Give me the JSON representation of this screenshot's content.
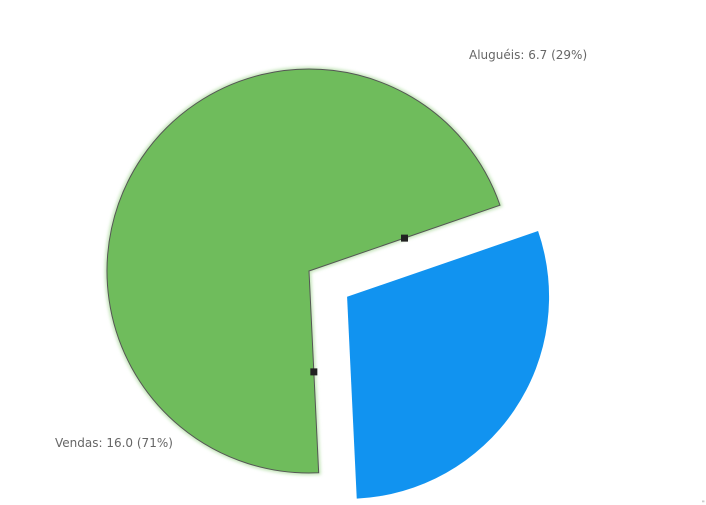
{
  "chart_data": {
    "type": "pie",
    "slices": [
      {
        "label": "Aluguéis",
        "value": 6.7,
        "percent": 29,
        "color": "#1193f0",
        "exploded": true,
        "selected": false
      },
      {
        "label": "Vendas",
        "value": 16.0,
        "percent": 71,
        "color": "#6fbc5c",
        "exploded": false,
        "selected": true
      }
    ],
    "labels": [
      "Aluguéis: 6.7 (29%)",
      "Vendas: 16.0 (71%)"
    ],
    "title": "",
    "legend": "none"
  },
  "corner_mark": "\""
}
